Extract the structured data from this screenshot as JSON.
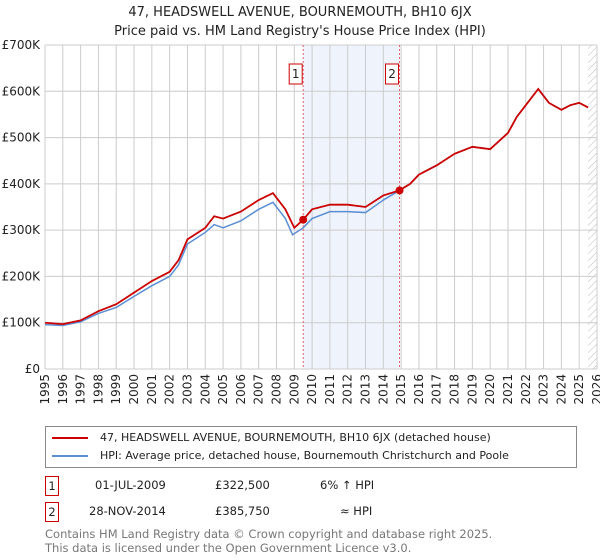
{
  "chart_data": {
    "type": "line",
    "title": "47, HEADSWELL AVENUE, BOURNEMOUTH, BH10 6JX",
    "subtitle": "Price paid vs. HM Land Registry's House Price Index (HPI)",
    "xlim": [
      1995,
      2026
    ],
    "ylim": [
      0,
      700000
    ],
    "yticks": [
      {
        "v": 0,
        "label": "£0"
      },
      {
        "v": 100000,
        "label": "£100K"
      },
      {
        "v": 200000,
        "label": "£200K"
      },
      {
        "v": 300000,
        "label": "£300K"
      },
      {
        "v": 400000,
        "label": "£400K"
      },
      {
        "v": 500000,
        "label": "£500K"
      },
      {
        "v": 600000,
        "label": "£600K"
      },
      {
        "v": 700000,
        "label": "£700K"
      }
    ],
    "xticks": [
      "1995",
      "1996",
      "1997",
      "1998",
      "1999",
      "2000",
      "2001",
      "2002",
      "2003",
      "2004",
      "2005",
      "2006",
      "2007",
      "2008",
      "2009",
      "2010",
      "2011",
      "2012",
      "2013",
      "2014",
      "2015",
      "2016",
      "2017",
      "2018",
      "2019",
      "2020",
      "2021",
      "2022",
      "2023",
      "2024",
      "2025",
      "2026"
    ],
    "series": [
      {
        "name": "47, HEADSWELL AVENUE, BOURNEMOUTH, BH10 6JX (detached house)",
        "color": "#cc0000",
        "x": [
          1995,
          1996,
          1997,
          1998,
          1999,
          2000,
          2001,
          2002,
          2002.5,
          2003,
          2004,
          2004.5,
          2005,
          2006,
          2007,
          2007.8,
          2008.5,
          2009.0,
          2009.5,
          2010,
          2011,
          2012,
          2013,
          2014,
          2014.9,
          2015.5,
          2016,
          2017,
          2018,
          2019,
          2020,
          2021,
          2021.5,
          2022,
          2022.7,
          2023.3,
          2024,
          2024.5,
          2025,
          2025.5
        ],
        "y": [
          100000,
          97000,
          105000,
          125000,
          140000,
          165000,
          190000,
          210000,
          235000,
          280000,
          305000,
          330000,
          325000,
          340000,
          365000,
          380000,
          345000,
          305000,
          322500,
          345000,
          355000,
          355000,
          350000,
          375000,
          385750,
          400000,
          420000,
          440000,
          465000,
          480000,
          475000,
          510000,
          545000,
          570000,
          605000,
          575000,
          560000,
          570000,
          575000,
          565000
        ]
      },
      {
        "name": "HPI: Average price, detached house, Bournemouth Christchurch and Poole",
        "color": "#5b8fd4",
        "x": [
          1995,
          1996,
          1997,
          1998,
          1999,
          2000,
          2001,
          2002,
          2002.5,
          2003,
          2004,
          2004.5,
          2005,
          2006,
          2007,
          2007.8,
          2008.5,
          2008.9,
          2009.5,
          2010,
          2011,
          2012,
          2013,
          2014,
          2014.9,
          2015.5,
          2016,
          2017,
          2018,
          2019,
          2020,
          2021,
          2021.5,
          2022,
          2022.7,
          2023.3,
          2024,
          2024.5,
          2025,
          2025.5
        ],
        "y": [
          96000,
          94000,
          102000,
          120000,
          133000,
          157000,
          180000,
          200000,
          225000,
          270000,
          295000,
          312000,
          305000,
          320000,
          345000,
          360000,
          325000,
          290000,
          305000,
          325000,
          340000,
          340000,
          338000,
          365000,
          385750,
          400000,
          420000,
          440000,
          465000,
          480000,
          475000,
          510000,
          545000,
          570000,
          605000,
          575000,
          560000,
          570000,
          575000,
          565000
        ]
      }
    ],
    "sales": [
      {
        "id": "1",
        "x": 2009.5,
        "y": 322500
      },
      {
        "id": "2",
        "x": 2014.91,
        "y": 385750
      }
    ],
    "forecast_from": 2025.5
  },
  "legend": [
    "47, HEADSWELL AVENUE, BOURNEMOUTH, BH10 6JX (detached house)",
    "HPI: Average price, detached house, Bournemouth Christchurch and Poole"
  ],
  "table": [
    {
      "id": "1",
      "date": "01-JUL-2009",
      "price": "£322,500",
      "hpi": "6% ↑ HPI"
    },
    {
      "id": "2",
      "date": "28-NOV-2014",
      "price": "£385,750",
      "hpi": "≈ HPI"
    }
  ],
  "footer": [
    "Contains HM Land Registry data © Crown copyright and database right 2025.",
    "This data is licensed under the Open Government Licence v3.0."
  ]
}
